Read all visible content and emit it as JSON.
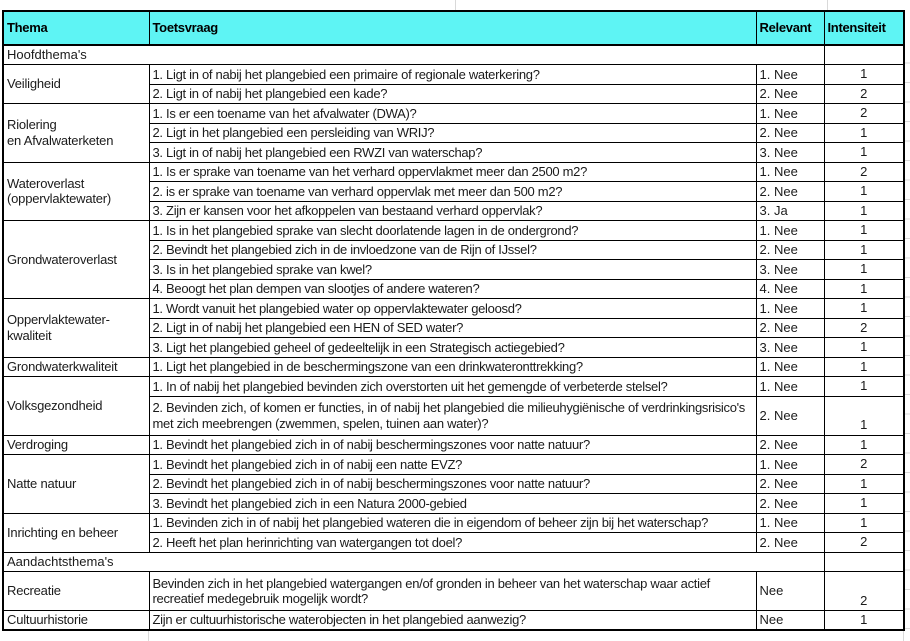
{
  "header": {
    "thema": "Thema",
    "toetsvraag": "Toetsvraag",
    "relevant": "Relevant",
    "intensiteit": "Intensiteit"
  },
  "colors": {
    "header_bg": "#5EF4F4",
    "table_border": "#000000",
    "gridline": "#D9D9D9",
    "text": "#1B1B1B"
  },
  "rows": [
    {
      "kind": "section",
      "label": "Hoofdthema's"
    },
    {
      "theme": "Veiligheid",
      "span": 2,
      "question": "1. Ligt in of nabij het plangebied een primaire of regionale waterkering?",
      "relevant": "1. Nee",
      "intensity": "1"
    },
    {
      "question": "2. Ligt in of nabij het plangebied een kade?",
      "relevant": "2. Nee",
      "intensity": "2"
    },
    {
      "theme": "Riolering\nen Afvalwaterketen",
      "span": 3,
      "question": "1. Is er een toename van het afvalwater (DWA)?",
      "relevant": "1. Nee",
      "intensity": "2"
    },
    {
      "question": "2. Ligt in het plangebied een persleiding van WRIJ?",
      "relevant": "2. Nee",
      "intensity": "1"
    },
    {
      "question": "3. Ligt in of nabij het plangebied een RWZI van waterschap?",
      "relevant": "3. Nee",
      "intensity": "1"
    },
    {
      "theme": "Wateroverlast\n(oppervlaktewater)",
      "span": 3,
      "question": "1. Is er sprake van toename van het verhard oppervlakmet meer dan 2500 m2?",
      "relevant": "1. Nee",
      "intensity": "2"
    },
    {
      "question": "2. is er sprake van toename van verhard oppervlak met meer dan 500 m2?",
      "relevant": "2. Nee",
      "intensity": "1"
    },
    {
      "question": "3. Zijn er kansen voor het afkoppelen van bestaand verhard oppervlak?",
      "relevant": "3. Ja",
      "intensity": "1"
    },
    {
      "theme": "Grondwateroverlast",
      "span": 4,
      "question": "1. Is in het plangebied sprake van slecht doorlatende lagen in de ondergrond?",
      "relevant": "1. Nee",
      "intensity": "1"
    },
    {
      "question": "2. Bevindt het plangebied zich in de invloedzone van de Rijn of IJssel?",
      "relevant": "2. Nee",
      "intensity": "1"
    },
    {
      "question": "3. Is in het plangebied sprake van kwel?",
      "relevant": "3. Nee",
      "intensity": "1"
    },
    {
      "question": "4. Beoogt het plan dempen van slootjes of andere wateren?",
      "relevant": "4. Nee",
      "intensity": "1"
    },
    {
      "theme": "Oppervlaktewater-\nkwaliteit",
      "span": 3,
      "question": "1. Wordt vanuit het plangebied water op oppervlaktewater geloosd?",
      "relevant": "1. Nee",
      "intensity": "1"
    },
    {
      "question": "2. Ligt in of nabij het plangebied een HEN of SED water?",
      "relevant": "2. Nee",
      "intensity": "2"
    },
    {
      "question": "3. Ligt het plangebied geheel of gedeeltelijk in een Strategisch actiegebied?",
      "relevant": "3. Nee",
      "intensity": "1"
    },
    {
      "theme": "Grondwaterkwaliteit",
      "span": 1,
      "question": "1. Ligt het plangebied in de beschermingszone van een drinkwateronttrekking?",
      "relevant": "1. Nee",
      "intensity": "1"
    },
    {
      "theme": "Volksgezondheid",
      "span": 2,
      "question": "1. In of nabij het plangebied bevinden zich overstorten uit het gemengde of verbeterde stelsel?",
      "relevant": "1. Nee",
      "intensity": "1"
    },
    {
      "question": "2. Bevinden zich, of komen er functies, in of nabij het plangebied die milieuhygiënische of verdrinkingsrisico's met zich meebrengen (zwemmen, spelen, tuinen aan water)?",
      "relevant": "2. Nee",
      "intensity": "1"
    },
    {
      "theme": "Verdroging",
      "span": 1,
      "question": "1. Bevindt het plangebied zich in of nabij beschermingszones voor natte natuur?",
      "relevant": "2. Nee",
      "intensity": "1"
    },
    {
      "theme": "Natte natuur",
      "span": 3,
      "question": "1. Bevindt het plangebied zich in of nabij een natte EVZ?",
      "relevant": "1. Nee",
      "intensity": "2"
    },
    {
      "question": "2. Bevindt het plangebied zich in of nabij beschermingszones voor natte natuur?",
      "relevant": "2. Nee",
      "intensity": "1"
    },
    {
      "question": "3. Bevindt het plangebied zich in een Natura 2000-gebied",
      "relevant": "2. Nee",
      "intensity": "1"
    },
    {
      "theme": "Inrichting en beheer",
      "span": 2,
      "question": "1. Bevinden zich in of nabij het plangebied wateren die in eigendom of beheer zijn bij het waterschap?",
      "relevant": "1. Nee",
      "intensity": "1"
    },
    {
      "question": "2. Heeft het plan herinrichting van watergangen tot doel?",
      "relevant": "2. Nee",
      "intensity": "2"
    },
    {
      "kind": "section",
      "label": "Aandachtsthema's"
    },
    {
      "theme": "Recreatie",
      "span": 1,
      "question": "Bevinden zich in het plangebied watergangen en/of gronden in beheer van het waterschap waar actief recreatief medegebruik mogelijk wordt?",
      "relevant": "Nee",
      "intensity": "2"
    },
    {
      "theme": "Cultuurhistorie",
      "span": 1,
      "question": "Zijn er cultuurhistorische waterobjecten in het plangebied aanwezig?",
      "relevant": "Nee",
      "intensity": "1"
    }
  ]
}
